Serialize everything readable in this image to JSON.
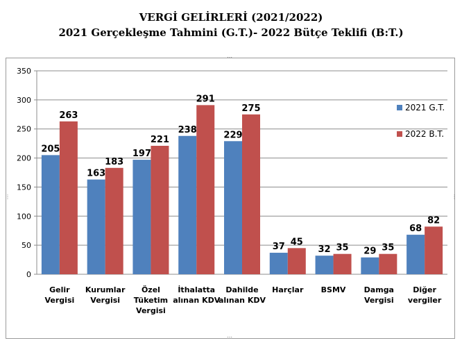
{
  "header": {
    "title_line1": "VERGİ GELİRLERİ (2021/2022)",
    "title_line2": "2021 Gerçekleşme Tahmini (G.T.)- 2022 Bütçe Teklifi (B:T.)"
  },
  "colors": {
    "series_2021": "#4f81bd",
    "series_2022": "#c0504d",
    "gridline": "#8c8c8c",
    "frame": "#9a9a9a"
  },
  "chart_data": {
    "type": "bar",
    "title": "VERGİ GELİRLERİ (2021/2022)",
    "subtitle": "2021 Gerçekleşme Tahmini (G.T.)- 2022 Bütçe Teklifi (B:T.)",
    "categories": [
      [
        "Gelir",
        "Vergisi"
      ],
      [
        "Kurumlar",
        "Vergisi"
      ],
      [
        "Özel",
        "Tüketim",
        "Vergisi"
      ],
      [
        "İthalatta",
        "alınan KDV"
      ],
      [
        "Dahilde",
        "alınan KDV"
      ],
      [
        "Harçlar"
      ],
      [
        "BSMV"
      ],
      [
        "Damga",
        "Vergisi"
      ],
      [
        "Diğer",
        "vergiler"
      ]
    ],
    "series": [
      {
        "name": "2021 G.T.",
        "values": [
          205,
          163,
          197,
          238,
          229,
          37,
          32,
          29,
          68
        ]
      },
      {
        "name": "2022 B.T.",
        "values": [
          263,
          183,
          221,
          291,
          275,
          45,
          35,
          35,
          82
        ]
      }
    ],
    "ylim": [
      0,
      350
    ],
    "yticks": [
      0,
      50,
      100,
      150,
      200,
      250,
      300,
      350
    ],
    "xlabel": "",
    "ylabel": "",
    "grid": true,
    "legend_position": "right"
  }
}
